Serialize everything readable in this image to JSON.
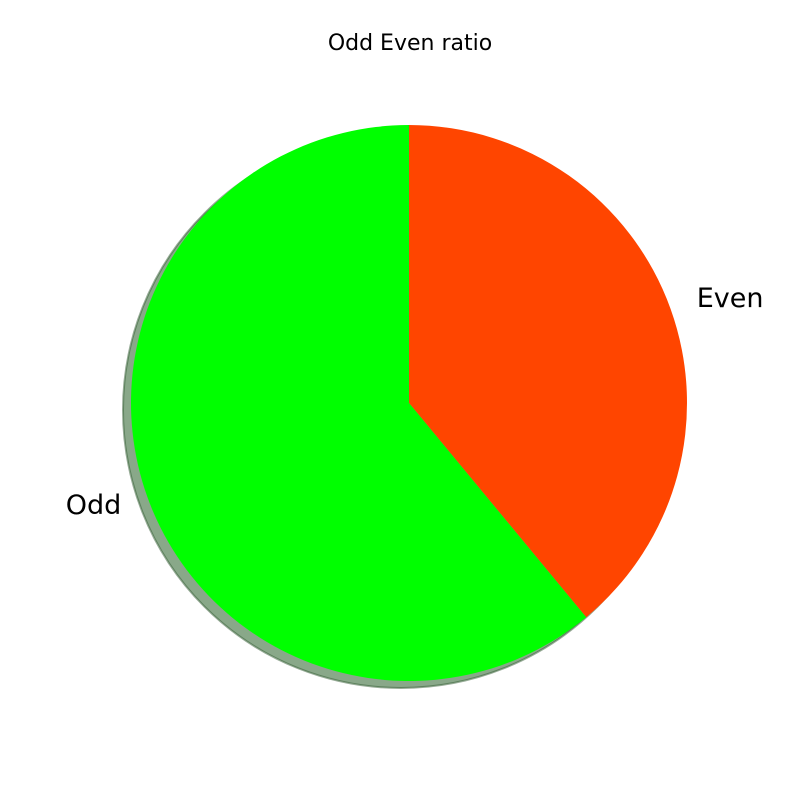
{
  "chart_data": {
    "type": "pie",
    "title": "Odd Even ratio",
    "slices": [
      {
        "label": "Even",
        "value": 39,
        "color": "#ff4500"
      },
      {
        "label": "Odd",
        "value": 61,
        "color": "#00ff00"
      }
    ],
    "start_angle_deg": 90,
    "direction": "clockwise",
    "shadow": true,
    "shadow_color": "#4a7a4a",
    "edge_color": "#ffffff"
  }
}
